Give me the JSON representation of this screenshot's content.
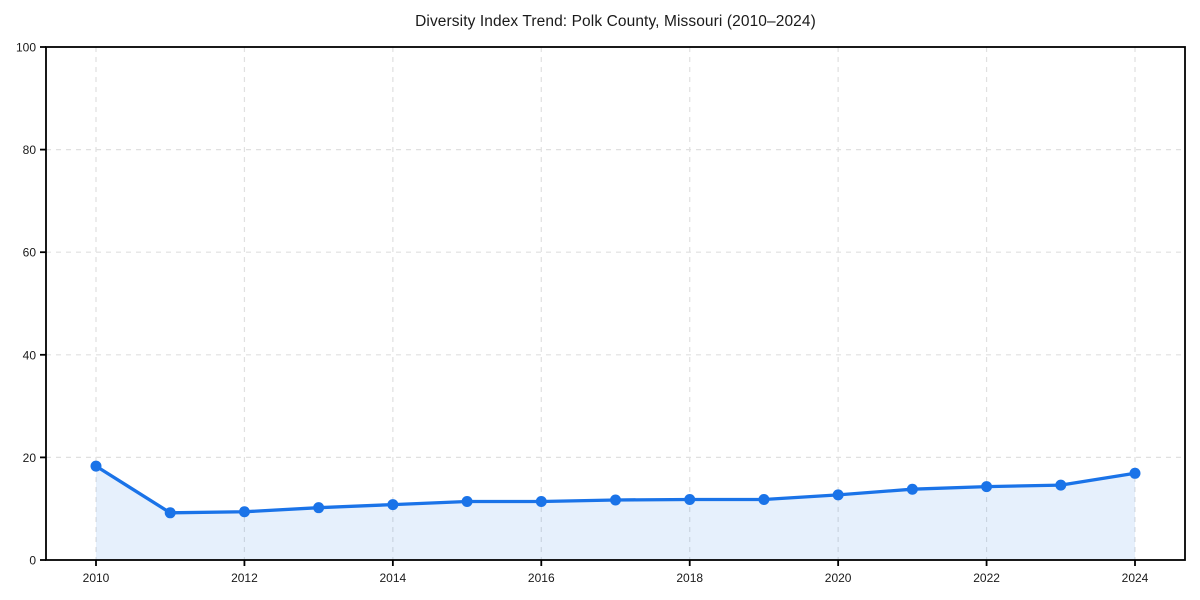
{
  "chart_data": {
    "type": "line",
    "title": "Diversity Index Trend: Polk County, Missouri (2010–2024)",
    "x": [
      2010,
      2011,
      2012,
      2013,
      2014,
      2015,
      2016,
      2017,
      2018,
      2019,
      2020,
      2021,
      2022,
      2023,
      2024
    ],
    "series": [
      {
        "name": "Diversity Index",
        "values": [
          18.3,
          9.2,
          9.4,
          10.2,
          10.8,
          11.4,
          11.4,
          11.7,
          11.8,
          11.8,
          12.7,
          13.8,
          14.3,
          14.6,
          16.9
        ]
      }
    ],
    "xlabel": "",
    "ylabel": "",
    "ylim": [
      0,
      100
    ],
    "yticks": [
      0,
      20,
      40,
      60,
      80,
      100
    ],
    "xticks": [
      2010,
      2012,
      2014,
      2016,
      2018,
      2020,
      2022,
      2024
    ],
    "grid": true,
    "legend": "none",
    "marker": "circle",
    "colors": {
      "line": "#1a73e8",
      "area_fill": "#1a73e8",
      "grid": "#e0e0e0",
      "axis": "#000000",
      "text": "#1a1a1a",
      "background": "#ffffff"
    }
  }
}
